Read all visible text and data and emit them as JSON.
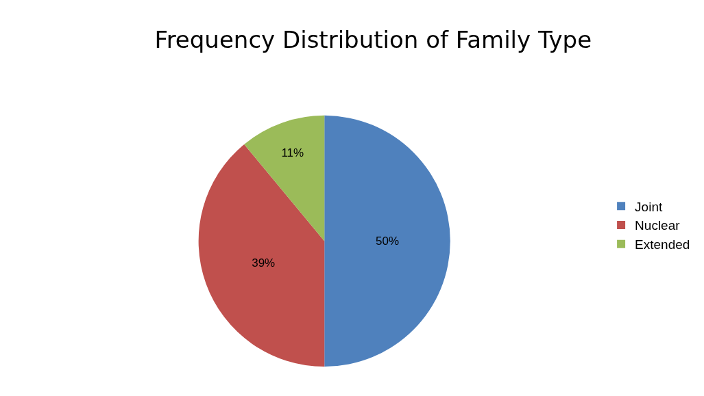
{
  "chart_data": {
    "type": "pie",
    "title": "Frequency Distribution of Family Type",
    "categories": [
      "Joint",
      "Nuclear",
      "Extended"
    ],
    "values": [
      50,
      39,
      11
    ],
    "colors": [
      "#4f81bd",
      "#c0504d",
      "#9bbb59"
    ],
    "value_labels": [
      "50%",
      "39%",
      "11%"
    ],
    "legend": "right"
  }
}
